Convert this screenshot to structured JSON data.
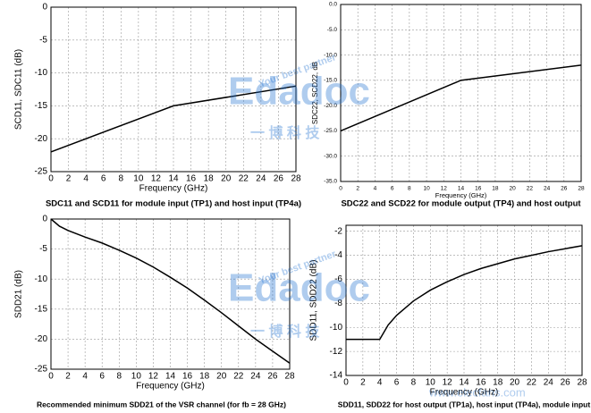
{
  "chart_data": [
    {
      "type": "line",
      "title": "SDC11 and SCD11 for module input (TP1) and host input (TP4a)",
      "x_label": "Frequency (GHz)",
      "y_label": "SCD11, SDC11 (dB)",
      "xlim": [
        0,
        28
      ],
      "xticks": [
        0,
        2,
        4,
        6,
        8,
        10,
        12,
        14,
        16,
        18,
        20,
        22,
        24,
        26,
        28
      ],
      "ylim": [
        -25,
        0
      ],
      "yticks": [
        -25,
        -20,
        -15,
        -10,
        -5,
        0
      ],
      "grid": true,
      "x": [
        0,
        14,
        28
      ],
      "series": [
        {
          "color": "#000000",
          "values": [
            -22,
            -15,
            -12
          ]
        }
      ]
    },
    {
      "type": "line",
      "title": "SDC22 and SCD22 for module output (TP4) and host output",
      "x_label": "Frequency (GHz)",
      "y_label": "SDC22, SCD22, dB",
      "xlim": [
        0,
        28
      ],
      "xticks": [
        0,
        2,
        4,
        6,
        8,
        10,
        12,
        14,
        16,
        18,
        20,
        22,
        24,
        26,
        28
      ],
      "ylim": [
        -35,
        0
      ],
      "yticks": [
        {
          "value": -35,
          "label": "-35.0"
        },
        {
          "value": -30,
          "label": "-30.0"
        },
        {
          "value": -25,
          "label": "-25.0"
        },
        {
          "value": -20,
          "label": "-20.0"
        },
        {
          "value": -15,
          "label": "-15.0"
        },
        {
          "value": -10,
          "label": "-10.0"
        },
        {
          "value": -5,
          "label": "-5.0"
        },
        {
          "value": 0,
          "label": "0.0"
        }
      ],
      "grid": true,
      "x": [
        0,
        14,
        28
      ],
      "series": [
        {
          "color": "#000000",
          "values": [
            -25,
            -15,
            -12
          ]
        }
      ]
    },
    {
      "type": "line",
      "title": "Recommended minimum SDD21 of the VSR channel (for fb = 28 GHz)",
      "x_label": "Frequency (GHz)",
      "y_label": "SDD21 (dB)",
      "xlim": [
        0,
        28
      ],
      "xticks": [
        0,
        2,
        4,
        6,
        8,
        10,
        12,
        14,
        16,
        18,
        20,
        22,
        24,
        26,
        28
      ],
      "ylim": [
        -25,
        0
      ],
      "yticks": [
        -25,
        -20,
        -15,
        -10,
        -5,
        0
      ],
      "grid": true,
      "x": [
        0,
        1,
        2,
        4,
        6,
        8,
        10,
        12,
        14,
        16,
        18,
        20,
        22,
        24,
        26,
        28
      ],
      "series": [
        {
          "color": "#000000",
          "values": [
            0,
            -1.2,
            -1.9,
            -3,
            -4,
            -5.2,
            -6.5,
            -8,
            -9.7,
            -11.5,
            -13.5,
            -15.6,
            -17.8,
            -20,
            -22,
            -24
          ]
        }
      ]
    },
    {
      "type": "line",
      "title": "SDD11, SDD22 for host output (TP1a), host input (TP4a), module input",
      "x_label": "Frequency (GHz)",
      "y_label": "SDD11, SDD22 (dB)",
      "xlim": [
        0,
        28
      ],
      "xticks": [
        0,
        2,
        4,
        6,
        8,
        10,
        12,
        14,
        16,
        18,
        20,
        22,
        24,
        26,
        28
      ],
      "ylim": [
        -14,
        -1.5
      ],
      "yticks": [
        -14,
        -12,
        -10,
        -8,
        -6,
        -4,
        -2
      ],
      "grid": true,
      "x": [
        0,
        4,
        5,
        6,
        8,
        10,
        12,
        14,
        16,
        18,
        20,
        22,
        24,
        26,
        28
      ],
      "series": [
        {
          "color": "#000000",
          "values": [
            -11,
            -11,
            -9.8,
            -9,
            -7.8,
            -6.9,
            -6.2,
            -5.6,
            -5.1,
            -4.7,
            -4.3,
            -4,
            -3.7,
            -3.45,
            -3.2
          ]
        }
      ]
    }
  ],
  "watermark": {
    "logo": "Edadoc",
    "slogan": "Your best partner",
    "chinese": "一 博 科 技",
    "site": "www.elecfans.com"
  }
}
